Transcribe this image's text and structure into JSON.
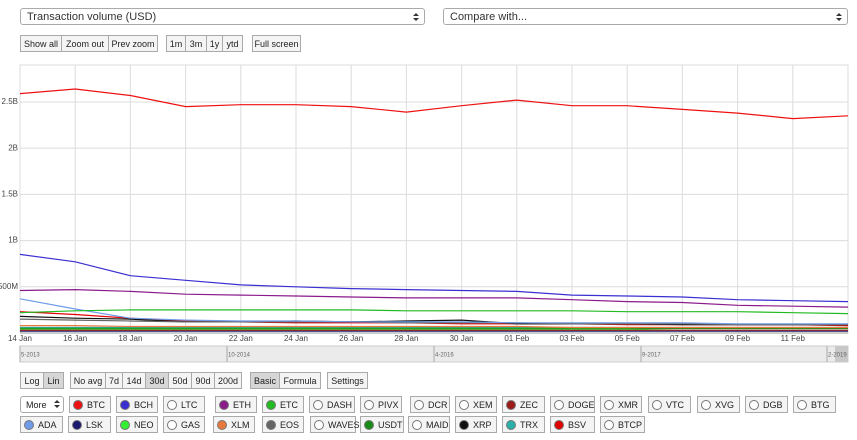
{
  "chart_data": {
    "type": "line",
    "categories": [
      "14 Jan",
      "16 Jan",
      "18 Jan",
      "20 Jan",
      "22 Jan",
      "24 Jan",
      "26 Jan",
      "28 Jan",
      "30 Jan",
      "01 Feb",
      "03 Feb",
      "05 Feb",
      "07 Feb",
      "09 Feb",
      "11 Feb",
      null
    ],
    "ylim": [
      0,
      2900000000.0
    ],
    "yticks": [
      {
        "value": 500000000.0,
        "label": "500M"
      },
      {
        "value": 1000000000.0,
        "label": "1B"
      },
      {
        "value": 1500000000.0,
        "label": "1.5B"
      },
      {
        "value": 2000000000.0,
        "label": "2B"
      },
      {
        "value": 2500000000.0,
        "label": "2.5B"
      }
    ],
    "grid": true,
    "series": [
      {
        "name": "BTC",
        "color": "#ee1111",
        "values": [
          2590000000.0,
          2640000000.0,
          2570000000.0,
          2450000000.0,
          2470000000.0,
          2470000000.0,
          2450000000.0,
          2390000000.0,
          2460000000.0,
          2520000000.0,
          2460000000.0,
          2460000000.0,
          2420000000.0,
          2380000000.0,
          2320000000.0,
          2350000000.0
        ]
      },
      {
        "name": "BCH",
        "color": "#3a2fd0",
        "values": [
          850000000.0,
          770000000.0,
          620000000.0,
          570000000.0,
          520000000.0,
          500000000.0,
          480000000.0,
          470000000.0,
          460000000.0,
          450000000.0,
          410000000.0,
          400000000.0,
          390000000.0,
          360000000.0,
          350000000.0,
          340000000.0
        ]
      },
      {
        "name": "ETH",
        "color": "#8b1a8b",
        "values": [
          460000000.0,
          470000000.0,
          450000000.0,
          420000000.0,
          410000000.0,
          400000000.0,
          390000000.0,
          380000000.0,
          380000000.0,
          380000000.0,
          360000000.0,
          340000000.0,
          330000000.0,
          300000000.0,
          290000000.0,
          280000000.0
        ]
      },
      {
        "name": "ETC",
        "color": "#22bb22",
        "values": [
          220000000.0,
          240000000.0,
          250000000.0,
          250000000.0,
          250000000.0,
          250000000.0,
          250000000.0,
          240000000.0,
          240000000.0,
          240000000.0,
          240000000.0,
          230000000.0,
          230000000.0,
          230000000.0,
          220000000.0,
          210000000.0
        ]
      },
      {
        "name": "ZEC",
        "color": "#9b1b1b",
        "values": [
          30000000.0,
          30000000.0,
          30000000.0,
          30000000.0,
          30000000.0,
          30000000.0,
          30000000.0,
          30000000.0,
          30000000.0,
          30000000.0,
          30000000.0,
          30000000.0,
          30000000.0,
          30000000.0,
          30000000.0,
          30000000.0
        ]
      },
      {
        "name": "ADA",
        "color": "#6f9be8",
        "values": [
          370000000.0,
          260000000.0,
          160000000.0,
          140000000.0,
          130000000.0,
          130000000.0,
          120000000.0,
          120000000.0,
          120000000.0,
          110000000.0,
          110000000.0,
          110000000.0,
          110000000.0,
          100000000.0,
          100000000.0,
          100000000.0
        ]
      },
      {
        "name": "LSK",
        "color": "#1c1a6e",
        "values": [
          20000000.0,
          20000000.0,
          20000000.0,
          20000000.0,
          20000000.0,
          20000000.0,
          20000000.0,
          20000000.0,
          20000000.0,
          20000000.0,
          20000000.0,
          20000000.0,
          20000000.0,
          20000000.0,
          20000000.0,
          20000000.0
        ]
      },
      {
        "name": "NEO",
        "color": "#33ee33",
        "values": [
          40000000.0,
          40000000.0,
          40000000.0,
          40000000.0,
          40000000.0,
          40000000.0,
          40000000.0,
          40000000.0,
          40000000.0,
          40000000.0,
          40000000.0,
          40000000.0,
          30000000.0,
          30000000.0,
          30000000.0,
          30000000.0
        ]
      },
      {
        "name": "XLM",
        "color": "#e8793c",
        "values": [
          80000000.0,
          80000000.0,
          70000000.0,
          70000000.0,
          70000000.0,
          70000000.0,
          70000000.0,
          70000000.0,
          70000000.0,
          70000000.0,
          60000000.0,
          60000000.0,
          60000000.0,
          60000000.0,
          60000000.0,
          60000000.0
        ]
      },
      {
        "name": "EOS",
        "color": "#666666",
        "values": [
          150000000.0,
          140000000.0,
          130000000.0,
          120000000.0,
          120000000.0,
          120000000.0,
          120000000.0,
          110000000.0,
          110000000.0,
          110000000.0,
          100000000.0,
          100000000.0,
          100000000.0,
          90000000.0,
          90000000.0,
          90000000.0
        ]
      },
      {
        "name": "USDT",
        "color": "#1a8a1a",
        "values": [
          50000000.0,
          50000000.0,
          50000000.0,
          50000000.0,
          50000000.0,
          50000000.0,
          50000000.0,
          50000000.0,
          50000000.0,
          50000000.0,
          50000000.0,
          50000000.0,
          50000000.0,
          50000000.0,
          50000000.0,
          50000000.0
        ]
      },
      {
        "name": "XRP",
        "color": "#111111",
        "values": [
          180000000.0,
          160000000.0,
          150000000.0,
          120000000.0,
          120000000.0,
          130000000.0,
          120000000.0,
          130000000.0,
          140000000.0,
          100000000.0,
          100000000.0,
          100000000.0,
          90000000.0,
          90000000.0,
          90000000.0,
          90000000.0
        ]
      },
      {
        "name": "TRX",
        "color": "#2ab0a8",
        "values": [
          60000000.0,
          60000000.0,
          60000000.0,
          60000000.0,
          60000000.0,
          60000000.0,
          60000000.0,
          60000000.0,
          60000000.0,
          60000000.0,
          60000000.0,
          60000000.0,
          60000000.0,
          60000000.0,
          60000000.0,
          60000000.0
        ]
      },
      {
        "name": "BSV",
        "color": "#e00000",
        "values": [
          230000000.0,
          200000000.0,
          160000000.0,
          130000000.0,
          120000000.0,
          110000000.0,
          110000000.0,
          110000000.0,
          100000000.0,
          100000000.0,
          100000000.0,
          90000000.0,
          90000000.0,
          90000000.0,
          90000000.0,
          80000000.0
        ]
      }
    ]
  },
  "selects": [
    "Transaction volume (USD)",
    "Compare with..."
  ],
  "zoom_buttons": [
    "Show all",
    "Zoom out",
    "Prev zoom"
  ],
  "range_buttons": [
    "1m",
    "3m",
    "1y",
    "ytd"
  ],
  "fullscreen": "Full screen",
  "navigator": [
    "5-2013",
    "10-2014",
    "4-2016",
    "9-2017",
    "2-2019"
  ],
  "scale_buttons": [
    "Log",
    "Lin"
  ],
  "avg_buttons": [
    "No avg",
    "7d",
    "14d",
    "30d",
    "50d",
    "90d",
    "200d"
  ],
  "mode_buttons": [
    "Basic",
    "Formula"
  ],
  "settings": "Settings",
  "more": "More",
  "other_coins": [
    "LTC",
    "DASH",
    "PIVX",
    "DCR",
    "XEM",
    "DOGE",
    "XMR",
    "VTC",
    "XVG",
    "DGB",
    "BTG",
    "GAS",
    "WAVES",
    "MAID",
    "BTCP"
  ]
}
